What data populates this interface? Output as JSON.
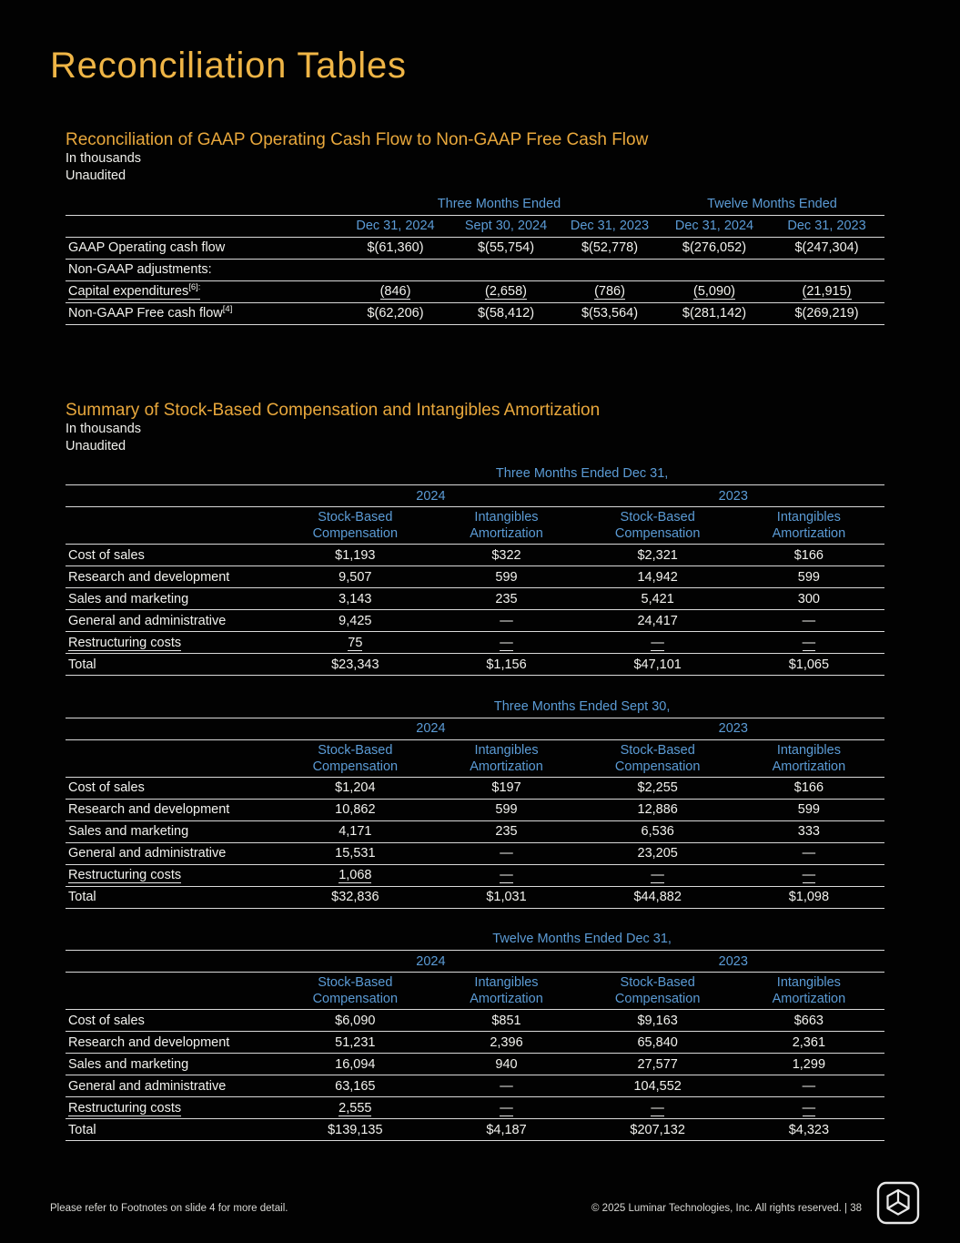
{
  "page": {
    "title": "Reconciliation Tables"
  },
  "colors": {
    "background": "#000000",
    "gold_title": "#EFB546",
    "gold_heading": "#E9A83C",
    "blue_header": "#5B9BD5",
    "body_text": "#F2F2EE",
    "rule_line": "#D9D9D9"
  },
  "cashflow": {
    "title": "Reconciliation of GAAP Operating Cash Flow to Non-GAAP Free Cash Flow",
    "unit_note": "In thousands",
    "audit_note": "Unaudited",
    "group_headers": [
      "Three Months Ended",
      "Twelve Months Ended"
    ],
    "col_headers": [
      "Dec 31, 2024",
      "Sept 30, 2024",
      "Dec 31, 2023",
      "Dec 31, 2024",
      "Dec 31, 2023"
    ],
    "rows": [
      {
        "label": "GAAP Operating cash flow",
        "values": [
          "$(61,360)",
          "$(55,754)",
          "$(52,778)",
          "$(276,052)",
          "$(247,304)"
        ]
      },
      {
        "label": "Non-GAAP adjustments:"
      },
      {
        "label": "Capital expenditures",
        "sup": "[6]:",
        "underline": true,
        "values": [
          "(846)",
          "(2,658)",
          "(786)",
          "(5,090)",
          "(21,915)"
        ]
      },
      {
        "label": "Non-GAAP Free cash flow",
        "sup": "[4]",
        "values": [
          "$(62,206)",
          "$(58,412)",
          "$(53,564)",
          "$(281,142)",
          "$(269,219)"
        ]
      }
    ]
  },
  "stock": {
    "title": "Summary of Stock-Based Compensation and Intangibles Amortization",
    "unit_note": "In thousands",
    "audit_note": "Unaudited",
    "tables": [
      {
        "period": "Three Months Ended Dec 31,",
        "years": [
          "2024",
          "2023"
        ],
        "col_headers": [
          "Stock-Based\nCompensation",
          "Intangibles\nAmortization",
          "Stock-Based\nCompensation",
          "Intangibles\nAmortization"
        ],
        "rows": [
          {
            "label": "Cost of sales",
            "values": [
              "$1,193",
              "$322",
              "$2,321",
              "$166"
            ]
          },
          {
            "label": "Research and development",
            "values": [
              "9,507",
              "599",
              "14,942",
              "599"
            ]
          },
          {
            "label": "Sales and marketing",
            "values": [
              "3,143",
              "235",
              "5,421",
              "300"
            ]
          },
          {
            "label": "General and administrative",
            "values": [
              "9,425",
              "—",
              "24,417",
              "—"
            ]
          },
          {
            "label": "Restructuring costs",
            "underline": true,
            "values": [
              "75",
              "—",
              "—",
              "—"
            ]
          },
          {
            "label": "Total",
            "total": true,
            "values": [
              "$23,343",
              "$1,156",
              "$47,101",
              "$1,065"
            ]
          }
        ]
      },
      {
        "period": "Three Months Ended Sept 30,",
        "years": [
          "2024",
          "2023"
        ],
        "col_headers": [
          "Stock-Based\nCompensation",
          "Intangibles\nAmortization",
          "Stock-Based\nCompensation",
          "Intangibles\nAmortization"
        ],
        "rows": [
          {
            "label": "Cost of sales",
            "values": [
              "$1,204",
              "$197",
              "$2,255",
              "$166"
            ]
          },
          {
            "label": "Research and development",
            "values": [
              "10,862",
              "599",
              "12,886",
              "599"
            ]
          },
          {
            "label": "Sales and marketing",
            "values": [
              "4,171",
              "235",
              "6,536",
              "333"
            ]
          },
          {
            "label": "General and administrative",
            "values": [
              "15,531",
              "—",
              "23,205",
              "—"
            ]
          },
          {
            "label": "Restructuring costs",
            "underline": true,
            "values": [
              "1,068",
              "—",
              "—",
              "—"
            ]
          },
          {
            "label": "Total",
            "total": true,
            "values": [
              "$32,836",
              "$1,031",
              "$44,882",
              "$1,098"
            ]
          }
        ]
      },
      {
        "period": "Twelve Months Ended Dec 31,",
        "years": [
          "2024",
          "2023"
        ],
        "col_headers": [
          "Stock-Based\nCompensation",
          "Intangibles\nAmortization",
          "Stock-Based\nCompensation",
          "Intangibles\nAmortization"
        ],
        "rows": [
          {
            "label": "Cost of sales",
            "values": [
              "$6,090",
              "$851",
              "$9,163",
              "$663"
            ]
          },
          {
            "label": "Research and development",
            "values": [
              "51,231",
              "2,396",
              "65,840",
              "2,361"
            ]
          },
          {
            "label": "Sales and marketing",
            "values": [
              "16,094",
              "940",
              "27,577",
              "1,299"
            ]
          },
          {
            "label": "General and administrative",
            "values": [
              "63,165",
              "—",
              "104,552",
              "—"
            ]
          },
          {
            "label": "Restructuring costs",
            "underline": true,
            "values": [
              "2,555",
              "—",
              "—",
              "—"
            ]
          },
          {
            "label": "Total",
            "total": true,
            "values": [
              "$139,135",
              "$4,187",
              "$207,132",
              "$4,323"
            ]
          }
        ]
      }
    ]
  },
  "footer": {
    "left": "Please refer to Footnotes on slide 4 for more detail.",
    "right": "© 2025 Luminar Technologies, Inc. All rights reserved.  |  38"
  }
}
